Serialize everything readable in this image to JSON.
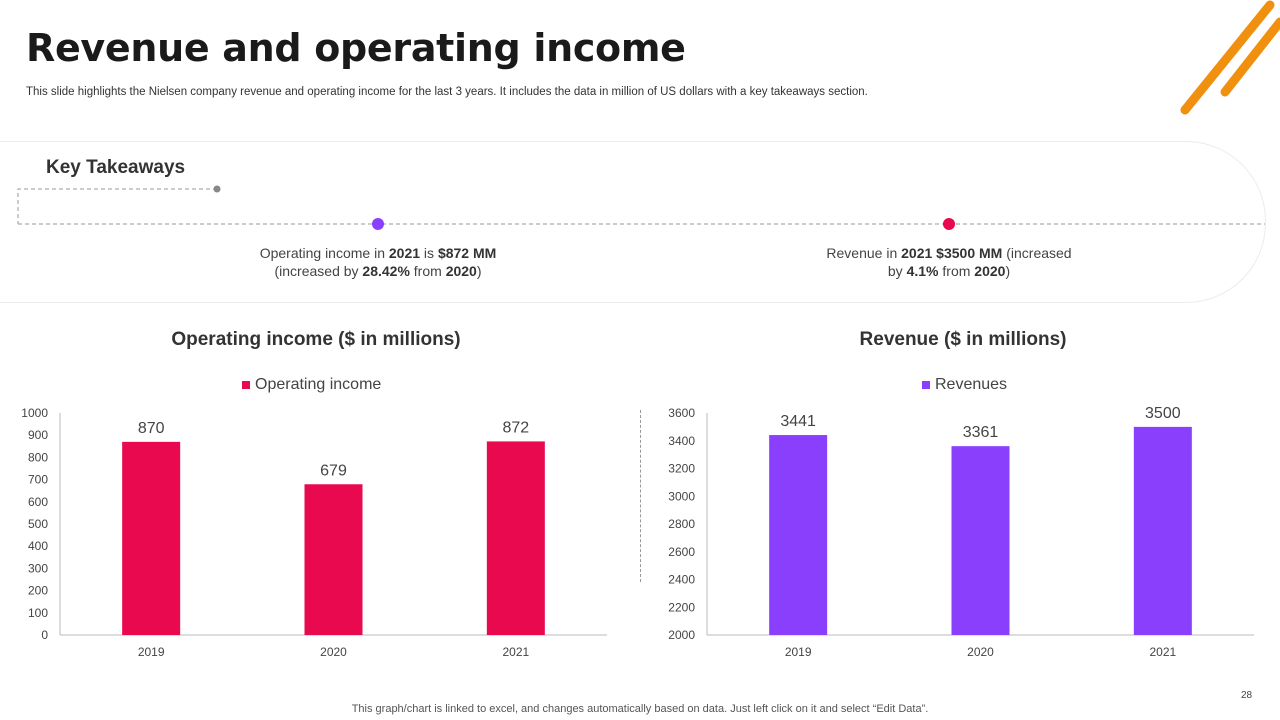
{
  "slide": {
    "title": "Revenue and operating income",
    "subtitle": "This slide highlights the Nielsen company revenue and operating income for the last 3 years. It includes the data in million of US dollars with a key takeaways section.",
    "footer": "This graph/chart is linked to excel,  and changes automatically based on data. Just left click on it and select “Edit Data”.",
    "page_number": "28"
  },
  "takeaways": {
    "heading": "Key Takeaways",
    "op": {
      "p1": "Operating income in ",
      "year": "2021",
      "p2": " is ",
      "amount": "$872 MM",
      "p3": "(increased by ",
      "pct": "28.42%",
      "p4": " from ",
      "base": "2020",
      "p5": ")"
    },
    "rev": {
      "p1": "Revenue in ",
      "year": "2021",
      "p2": " ",
      "amount": "$3500 MM",
      "p3": " (increased",
      "p4": "by ",
      "pct": "4.1%",
      "p5": " from ",
      "base": "2020",
      "p6": ")"
    }
  },
  "colors": {
    "operating": "#e8094f",
    "revenue": "#8a3ffc",
    "accent_orange": "#f0900e",
    "dot_grey": "#888888"
  },
  "chart_data": [
    {
      "type": "bar",
      "title": "Operating income ($ in millions)",
      "categories": [
        "2019",
        "2020",
        "2021"
      ],
      "series": [
        {
          "name": "Operating income",
          "values": [
            870,
            679,
            872
          ]
        }
      ],
      "ylim": [
        0,
        1000
      ],
      "yticks": [
        0,
        100,
        200,
        300,
        400,
        500,
        600,
        700,
        800,
        900,
        1000
      ],
      "legend": "top-center",
      "grid": false
    },
    {
      "type": "bar",
      "title": "Revenue ($ in millions)",
      "categories": [
        "2019",
        "2020",
        "2021"
      ],
      "series": [
        {
          "name": "Revenues",
          "values": [
            3441,
            3361,
            3500
          ]
        }
      ],
      "ylim": [
        2000,
        3600
      ],
      "yticks": [
        2000,
        2200,
        2400,
        2600,
        2800,
        3000,
        3200,
        3400,
        3600
      ],
      "legend": "top-center",
      "grid": false
    }
  ]
}
